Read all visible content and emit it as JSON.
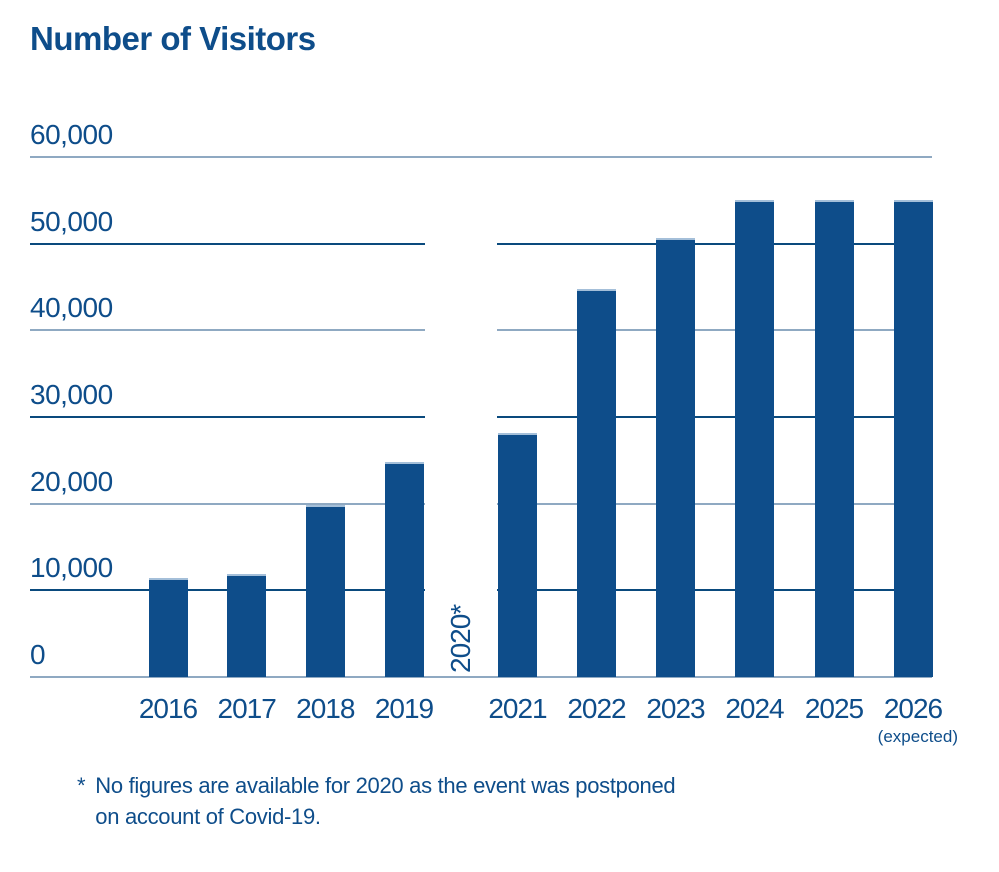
{
  "chart_data": {
    "type": "bar",
    "title": "Number of Visitors",
    "categories": [
      "2016",
      "2017",
      "2018",
      "2019",
      "2020*",
      "2021",
      "2022",
      "2023",
      "2024",
      "2025",
      "2026"
    ],
    "values": [
      11400,
      11900,
      19800,
      24800,
      null,
      28200,
      44800,
      50700,
      55000,
      55000,
      55000
    ],
    "category_sublabels": {
      "2026": "(expected)"
    },
    "ylim": [
      0,
      60000
    ],
    "ytick_step": 10000,
    "ytick_labels": [
      "0",
      "10,000",
      "20,000",
      "30,000",
      "40,000",
      "50,000",
      "60,000"
    ],
    "grid": "horizontal",
    "legend": "none",
    "missing_value_label": "2020*"
  },
  "footnote": {
    "marker": "*",
    "line1": "No figures are available for 2020 as the event was postponed",
    "line2": "on account of Covid-19."
  },
  "colors": {
    "bar": "#0e4d8a",
    "text": "#0e4d8a",
    "grid_dark": "#0a4a7d",
    "grid_light": "#8fa9c2",
    "background": "#ffffff"
  }
}
